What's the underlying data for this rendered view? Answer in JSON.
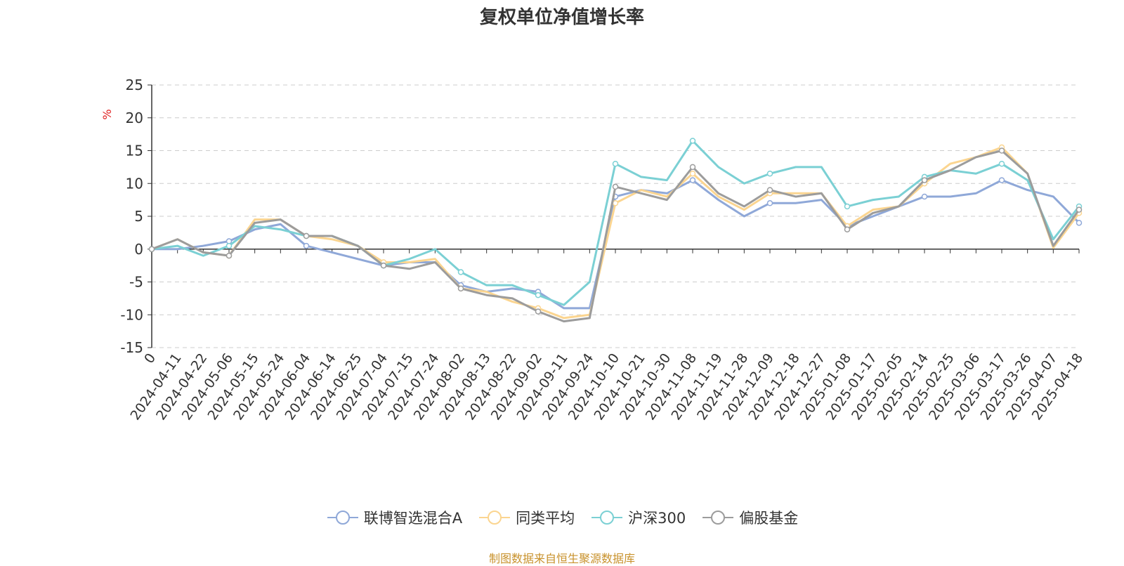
{
  "chart_data": {
    "type": "line",
    "title": "复权单位净值增长率",
    "ylabel": "%",
    "ylim": [
      -15,
      25
    ],
    "yticks": [
      25,
      20,
      15,
      10,
      5,
      0,
      -5,
      -10,
      -15
    ],
    "grid": true,
    "legend_position": "bottom",
    "x_ticks": [
      "0",
      "2024-04-11",
      "2024-04-22",
      "2024-05-06",
      "2024-05-15",
      "2024-05-24",
      "2024-06-04",
      "2024-06-14",
      "2024-06-25",
      "2024-07-04",
      "2024-07-15",
      "2024-07-24",
      "2024-08-02",
      "2024-08-13",
      "2024-08-22",
      "2024-09-02",
      "2024-09-11",
      "2024-09-24",
      "2024-10-10",
      "2024-10-21",
      "2024-10-30",
      "2024-11-08",
      "2024-11-19",
      "2024-11-28",
      "2024-12-09",
      "2024-12-18",
      "2024-12-27",
      "2025-01-08",
      "2025-01-17",
      "2025-02-05",
      "2025-02-14",
      "2025-02-25",
      "2025-03-06",
      "2025-03-17",
      "2025-03-26",
      "2025-04-07",
      "2025-04-18"
    ],
    "series": [
      {
        "name": "联博智选混合A",
        "color": "#8fa8d8",
        "values": [
          0,
          0,
          0.5,
          1.2,
          3,
          3.8,
          0.5,
          -0.5,
          -1.5,
          -2.5,
          -2,
          -2,
          -5.5,
          -6.5,
          -6,
          -6.5,
          -9,
          -9,
          8,
          9,
          8.5,
          10.5,
          7.5,
          5,
          7,
          7,
          7.5,
          3.5,
          5,
          6.5,
          8,
          8,
          8.5,
          10.5,
          9,
          8,
          4
        ]
      },
      {
        "name": "同类平均",
        "color": "#fbd590",
        "values": [
          0,
          1.5,
          -0.5,
          -1,
          4.5,
          4.5,
          2,
          1.5,
          0.5,
          -2,
          -2,
          -1.5,
          -6,
          -6.5,
          -8,
          -9,
          -10.5,
          -10,
          7,
          9,
          8,
          11.5,
          8,
          6,
          8.5,
          8.5,
          8.5,
          3.5,
          6,
          6.5,
          10,
          13,
          14,
          15.5,
          11.5,
          0.2,
          5.5
        ]
      },
      {
        "name": "沪深300",
        "color": "#7bd0d4",
        "values": [
          0,
          0.5,
          -1,
          0.5,
          3.5,
          3,
          2,
          2,
          0.5,
          -2.5,
          -1.5,
          0,
          -3.5,
          -5.5,
          -5.5,
          -7,
          -8.5,
          -5,
          13,
          11,
          10.5,
          16.5,
          12.5,
          10,
          11.5,
          12.5,
          12.5,
          6.5,
          7.5,
          8,
          11,
          12,
          11.5,
          13,
          10.5,
          1.5,
          6.5
        ]
      },
      {
        "name": "偏股基金",
        "color": "#9c9c9c",
        "values": [
          0,
          1.5,
          -0.5,
          -1,
          4,
          4.5,
          2,
          2,
          0.5,
          -2.5,
          -3,
          -2,
          -6,
          -7,
          -7.5,
          -9.5,
          -11,
          -10.5,
          9.5,
          8.5,
          7.5,
          12.5,
          8.5,
          6.5,
          9,
          8,
          8.5,
          3,
          5.5,
          6.5,
          10.5,
          12,
          14,
          15,
          11.5,
          0.5,
          6
        ]
      }
    ]
  },
  "footer_note": "制图数据来自恒生聚源数据库"
}
